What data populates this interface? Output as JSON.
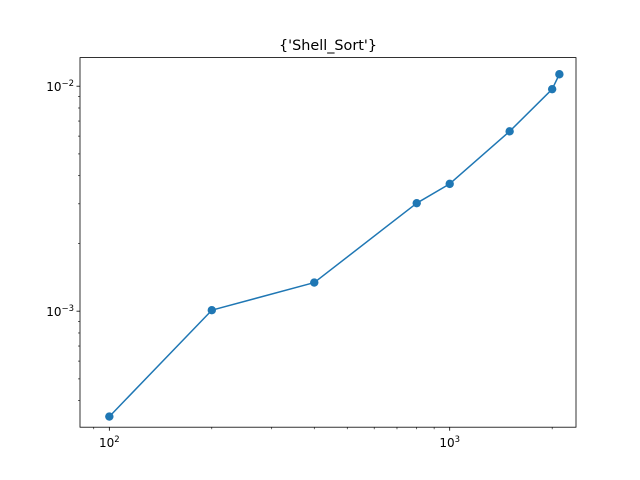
{
  "chart_data": {
    "type": "line",
    "title": "{'Shell_Sort'}",
    "xlabel": "",
    "ylabel": "",
    "xscale": "log",
    "yscale": "log",
    "xlim": [
      82,
      2350
    ],
    "ylim": [
      0.000305,
      0.0134
    ],
    "grid": false,
    "legend": "none",
    "colors": {
      "series": "#1f77b4",
      "axes": "#000000",
      "background": "#ffffff"
    },
    "x_major_ticks": [
      {
        "value": 100,
        "base": "10",
        "exp": "2"
      },
      {
        "value": 1000,
        "base": "10",
        "exp": "3"
      }
    ],
    "y_major_ticks": [
      {
        "value": 0.001,
        "base": "10",
        "exp": "−3"
      },
      {
        "value": 0.01,
        "base": "10",
        "exp": "−2"
      }
    ],
    "series": [
      {
        "marker": "circle",
        "x": [
          100,
          200,
          400,
          800,
          1000,
          1500,
          2000,
          2100
        ],
        "y": [
          0.00034,
          0.00101,
          0.00134,
          0.00302,
          0.00368,
          0.0063,
          0.0097,
          0.0113
        ]
      }
    ]
  }
}
